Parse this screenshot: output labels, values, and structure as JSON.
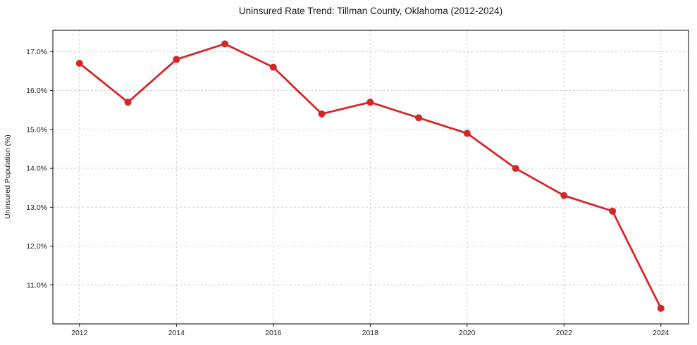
{
  "chart_data": {
    "type": "line",
    "title": "Uninsured Rate Trend: Tillman County, Oklahoma (2012-2024)",
    "xlabel": "",
    "ylabel": "Uninsured Population (%)",
    "series_name": "Uninsured Rate",
    "x": [
      2012,
      2013,
      2014,
      2015,
      2016,
      2017,
      2018,
      2019,
      2020,
      2021,
      2022,
      2023,
      2024
    ],
    "values": [
      16.7,
      15.7,
      16.8,
      17.2,
      16.6,
      15.4,
      15.7,
      15.3,
      14.9,
      14.0,
      13.3,
      12.9,
      10.4
    ],
    "x_ticks": [
      2012,
      2014,
      2016,
      2018,
      2020,
      2022,
      2024
    ],
    "x_tick_labels": [
      "2012",
      "2014",
      "2016",
      "2018",
      "2020",
      "2022",
      "2024"
    ],
    "y_ticks": [
      17.0,
      16.0,
      15.0,
      14.0,
      13.0,
      12.0,
      11.0
    ],
    "y_tick_labels": [
      "17.0%",
      "16.0%",
      "15.0%",
      "14.0%",
      "13.0%",
      "12.0%",
      "11.0%"
    ],
    "xlim": [
      2011.45,
      2024.57
    ],
    "ylim": [
      10.0,
      17.55
    ],
    "grid": true,
    "legend": false,
    "marker": "circle",
    "colors": {
      "line": "#d62728",
      "marker": "#d62728",
      "grid": "#cccccc",
      "spine": "#000000",
      "tick": "#000000",
      "background": "#ffffff"
    }
  }
}
